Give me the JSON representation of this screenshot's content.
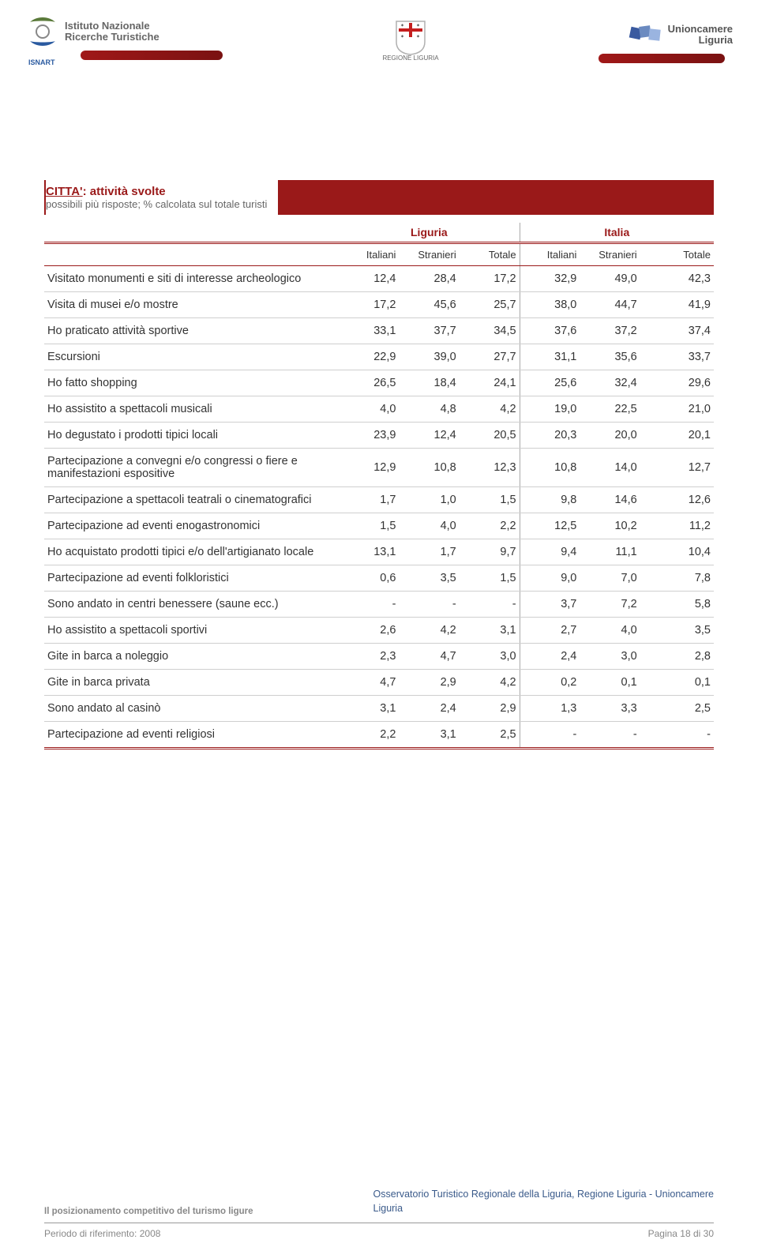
{
  "header": {
    "left_brand_line1": "Istituto Nazionale",
    "left_brand_line2": "Ricerche Turistiche",
    "left_badge": "ISNART",
    "center_caption": "REGIONE LIGURIA",
    "right_brand_line1": "Unioncamere",
    "right_brand_line2": "Liguria",
    "swoosh_color": "#9a1919"
  },
  "title": {
    "underlined": "CITTA'",
    "rest": ": attività svolte",
    "subtitle": "possibili più risposte; % calcolata sul totale turisti",
    "bar_color": "#9a1919"
  },
  "table": {
    "group_headers": [
      "Liguria",
      "Italia"
    ],
    "column_headers": [
      "Italiani",
      "Stranieri",
      "Totale",
      "Italiani",
      "Stranieri",
      "Totale"
    ],
    "col_widths_pct": [
      44,
      9,
      9,
      9,
      9,
      9,
      9
    ],
    "header_color": "#9a1919",
    "row_border_color": "#cfcfcf",
    "font_size_pt": 11,
    "rows": [
      {
        "label": "Visitato monumenti e siti di interesse archeologico",
        "v": [
          "12,4",
          "28,4",
          "17,2",
          "32,9",
          "49,0",
          "42,3"
        ]
      },
      {
        "label": "Visita di musei e/o mostre",
        "v": [
          "17,2",
          "45,6",
          "25,7",
          "38,0",
          "44,7",
          "41,9"
        ]
      },
      {
        "label": "Ho praticato attività sportive",
        "v": [
          "33,1",
          "37,7",
          "34,5",
          "37,6",
          "37,2",
          "37,4"
        ]
      },
      {
        "label": "Escursioni",
        "v": [
          "22,9",
          "39,0",
          "27,7",
          "31,1",
          "35,6",
          "33,7"
        ]
      },
      {
        "label": "Ho fatto shopping",
        "v": [
          "26,5",
          "18,4",
          "24,1",
          "25,6",
          "32,4",
          "29,6"
        ]
      },
      {
        "label": "Ho assistito a spettacoli musicali",
        "v": [
          "4,0",
          "4,8",
          "4,2",
          "19,0",
          "22,5",
          "21,0"
        ]
      },
      {
        "label": "Ho degustato i prodotti tipici locali",
        "v": [
          "23,9",
          "12,4",
          "20,5",
          "20,3",
          "20,0",
          "20,1"
        ]
      },
      {
        "label": "Partecipazione a convegni e/o congressi o fiere e manifestazioni espositive",
        "v": [
          "12,9",
          "10,8",
          "12,3",
          "10,8",
          "14,0",
          "12,7"
        ]
      },
      {
        "label": "Partecipazione a spettacoli teatrali o cinematografici",
        "v": [
          "1,7",
          "1,0",
          "1,5",
          "9,8",
          "14,6",
          "12,6"
        ]
      },
      {
        "label": "Partecipazione ad eventi enogastronomici",
        "v": [
          "1,5",
          "4,0",
          "2,2",
          "12,5",
          "10,2",
          "11,2"
        ]
      },
      {
        "label": "Ho acquistato prodotti tipici e/o dell'artigianato locale",
        "v": [
          "13,1",
          "1,7",
          "9,7",
          "9,4",
          "11,1",
          "10,4"
        ]
      },
      {
        "label": "Partecipazione ad eventi folkloristici",
        "v": [
          "0,6",
          "3,5",
          "1,5",
          "9,0",
          "7,0",
          "7,8"
        ]
      },
      {
        "label": "Sono andato in centri benessere (saune ecc.)",
        "v": [
          "-",
          "-",
          "-",
          "3,7",
          "7,2",
          "5,8"
        ]
      },
      {
        "label": "Ho assistito a spettacoli sportivi",
        "v": [
          "2,6",
          "4,2",
          "3,1",
          "2,7",
          "4,0",
          "3,5"
        ]
      },
      {
        "label": "Gite in barca a noleggio",
        "v": [
          "2,3",
          "4,7",
          "3,0",
          "2,4",
          "3,0",
          "2,8"
        ]
      },
      {
        "label": "Gite in barca privata",
        "v": [
          "4,7",
          "2,9",
          "4,2",
          "0,2",
          "0,1",
          "0,1"
        ]
      },
      {
        "label": "Sono andato al casinò",
        "v": [
          "3,1",
          "2,4",
          "2,9",
          "1,3",
          "3,3",
          "2,5"
        ]
      },
      {
        "label": "Partecipazione ad eventi religiosi",
        "v": [
          "2,2",
          "3,1",
          "2,5",
          "-",
          "-",
          "-"
        ]
      }
    ]
  },
  "footer": {
    "left_text": "Il posizionamento competitivo del turismo ligure",
    "right_line1": "Osservatorio Turistico Regionale della Liguria, Regione Liguria - Unioncamere",
    "right_line2": "Liguria",
    "bottom_left": "Periodo di riferimento: 2008",
    "bottom_right": "Pagina 18 di 30",
    "right_color": "#3a5a8a"
  }
}
